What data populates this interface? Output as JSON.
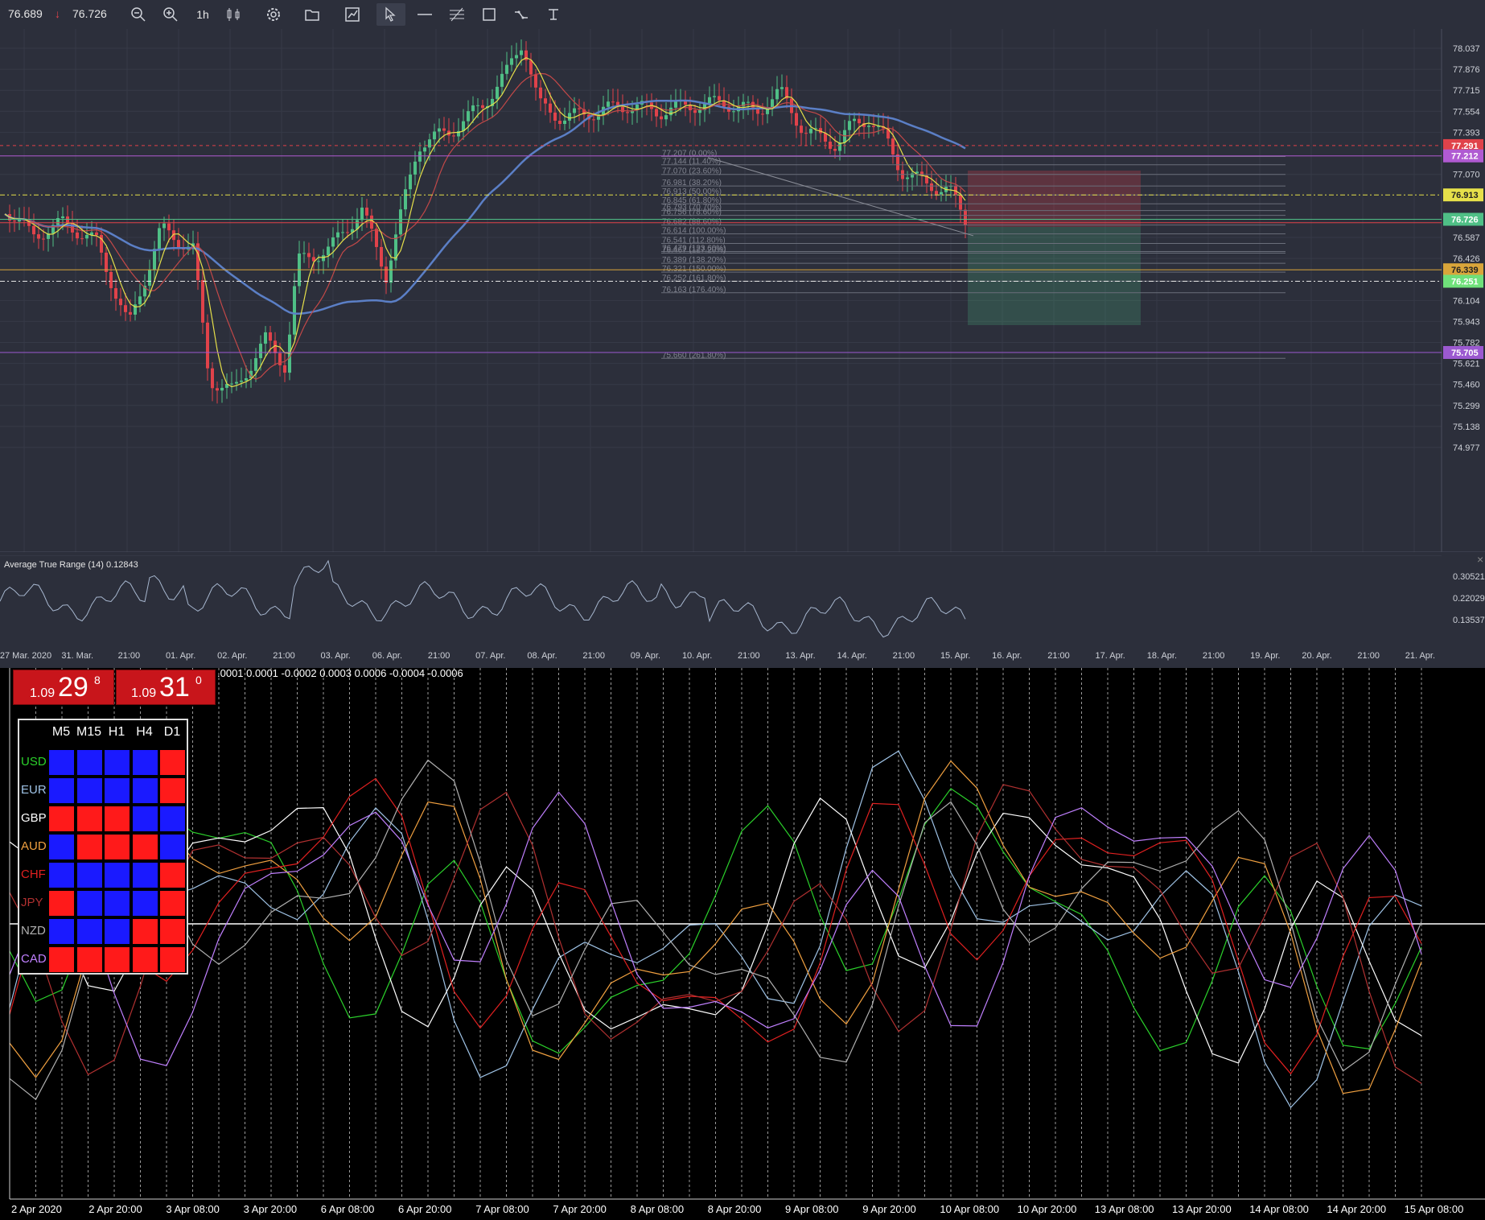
{
  "toolbar": {
    "bid": "76.689",
    "ask": "76.726",
    "timeframe": "1h"
  },
  "price_axis": {
    "ticks": [
      "78.037",
      "77.876",
      "77.715",
      "77.554",
      "77.393",
      "77.070",
      "76.587",
      "76.426",
      "76.104",
      "75.943",
      "75.782",
      "75.621",
      "75.460",
      "75.299",
      "75.138",
      "74.977"
    ],
    "markers": [
      {
        "label": "77.291",
        "color": "#e0424a"
      },
      {
        "label": "77.212",
        "color": "#b05ad2"
      },
      {
        "label": "76.913",
        "color": "#e6e04a"
      },
      {
        "label": "76.726",
        "color": "#4fbf86"
      },
      {
        "label": "76.339",
        "color": "#d9a53a"
      },
      {
        "label": "76.251",
        "color": "#6fe07a"
      },
      {
        "label": "75.705",
        "color": "#9b59d0"
      }
    ]
  },
  "fibonacci": [
    "77.207 (0.00%)",
    "77.144 (11.40%)",
    "77.070 (23.60%)",
    "76.981 (38.20%)",
    "76.913 (50.00%)",
    "76.845 (61.80%)",
    "76.793 (70.70%)",
    "76.756 (78.60%)",
    "76.682 (88.60%)",
    "76.614 (100.00%)",
    "76.541 (112.80%)",
    "76.479 (123.60%)",
    "76.467 (127.20%)",
    "76.389 (138.20%)",
    "76.321 (150.00%)",
    "76.252 (161.80%)",
    "76.163 (176.40%)",
    "75.660 (261.80%)"
  ],
  "atr": {
    "label": "Average True Range (14) 0.12843",
    "ticks": [
      "0.30521",
      "0.22029",
      "0.13537"
    ]
  },
  "time_axis": {
    "labels": [
      "27 Mar. 2020",
      "31. Mar.",
      "21:00",
      "01. Apr.",
      "02. Apr.",
      "21:00",
      "03. Apr.",
      "06. Apr.",
      "21:00",
      "07. Apr.",
      "08. Apr.",
      "21:00",
      "09. Apr.",
      "10. Apr.",
      "21:00",
      "13. Apr.",
      "14. Apr.",
      "21:00",
      "15. Apr.",
      "16. Apr.",
      "21:00",
      "17. Apr.",
      "18. Apr.",
      "21:00",
      "19. Apr.",
      "20. Apr.",
      "21:00",
      "21. Apr."
    ]
  },
  "mt4": {
    "top_values": ".0001 0.0001 -0.0002 0.0003 0.0006 -0.0004 -0.0006",
    "quote_bid": {
      "prefix": "1.09",
      "big": "29",
      "sup": "8"
    },
    "quote_ask": {
      "prefix": "1.09",
      "big": "31",
      "sup": "0"
    },
    "heatmap": {
      "columns": [
        "M5",
        "M15",
        "H1",
        "H4",
        "D1"
      ],
      "rows": [
        {
          "label": "USD",
          "color": "#2bd12b",
          "cells": [
            "blue",
            "blue",
            "blue",
            "blue",
            "red"
          ]
        },
        {
          "label": "EUR",
          "color": "#9fc3e6",
          "cells": [
            "blue",
            "blue",
            "blue",
            "blue",
            "red"
          ]
        },
        {
          "label": "GBP",
          "color": "#ffffff",
          "cells": [
            "red",
            "red",
            "red",
            "blue",
            "blue"
          ]
        },
        {
          "label": "AUD",
          "color": "#f0a040",
          "cells": [
            "blue",
            "red",
            "red",
            "red",
            "blue"
          ]
        },
        {
          "label": "CHF",
          "color": "#e02020",
          "cells": [
            "blue",
            "blue",
            "blue",
            "blue",
            "red"
          ]
        },
        {
          "label": "JPY",
          "color": "#b03030",
          "cells": [
            "red",
            "blue",
            "blue",
            "blue",
            "red"
          ]
        },
        {
          "label": "NZD",
          "color": "#b0b0b0",
          "cells": [
            "blue",
            "blue",
            "blue",
            "red",
            "red"
          ]
        },
        {
          "label": "CAD",
          "color": "#c080ff",
          "cells": [
            "red",
            "red",
            "red",
            "red",
            "red"
          ]
        }
      ]
    },
    "time_labels": [
      "2 Apr 2020",
      "2 Apr 20:00",
      "3 Apr 08:00",
      "3 Apr 20:00",
      "6 Apr 08:00",
      "6 Apr 20:00",
      "7 Apr 08:00",
      "7 Apr 20:00",
      "8 Apr 08:00",
      "8 Apr 20:00",
      "9 Apr 08:00",
      "9 Apr 20:00",
      "10 Apr 08:00",
      "10 Apr 20:00",
      "13 Apr 08:00",
      "13 Apr 20:00",
      "14 Apr 08:00",
      "14 Apr 20:00",
      "15 Apr 08:00"
    ]
  },
  "colors": {
    "bg_top": "#2c2f3b",
    "up_candle": "#4fbf86",
    "down_candle": "#e0424a",
    "ma_blue": "#5b7fc6",
    "ma_yellow": "#e6e04a",
    "ma_red": "#c24848"
  }
}
